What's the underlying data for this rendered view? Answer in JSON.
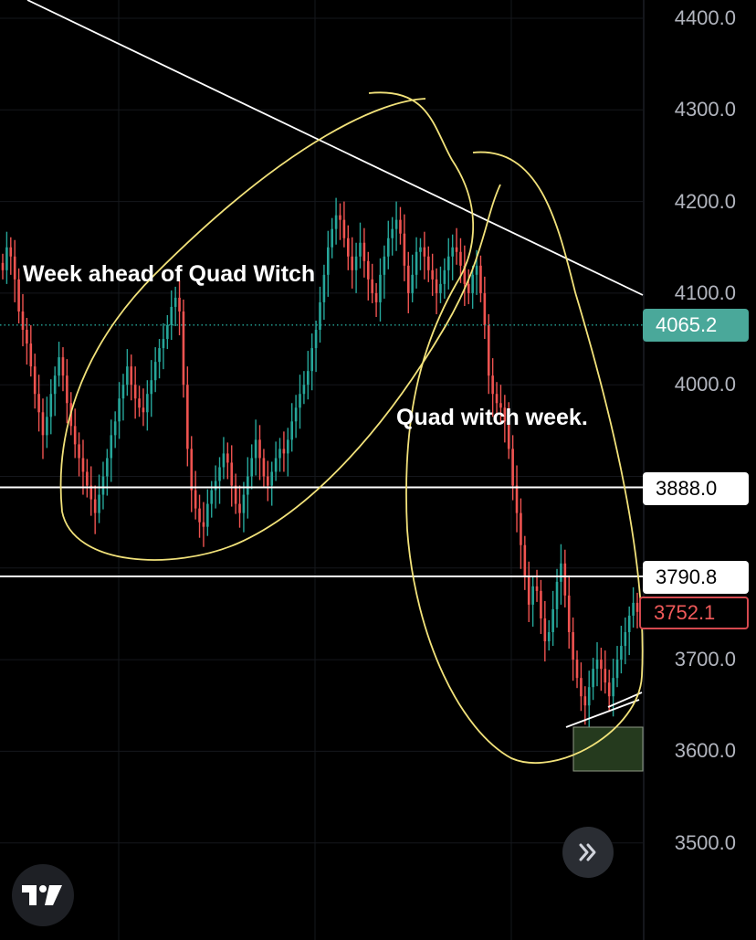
{
  "chart_data": {
    "type": "candlestick",
    "title": "",
    "xlabel": "",
    "ylabel": "",
    "ylim": [
      3460,
      4420
    ],
    "price_axis_ticks": [
      "4400.0",
      "4300.0",
      "4200.0",
      "4100.0",
      "4000.0",
      "3700.0",
      "3600.0",
      "3500.0"
    ],
    "price_tags": {
      "last_price_dotted": "4065.2",
      "horizontal_line_1": "3888.0",
      "horizontal_line_2": "3790.8",
      "current_price": "3752.1"
    },
    "horizontal_levels": [
      3888.0,
      3790.8
    ],
    "dotted_level": 4065.2,
    "annotations": [
      "Week ahead of Quad Witch",
      "Quad witch week."
    ],
    "closes": [
      4125,
      4150,
      4140,
      4115,
      4080,
      4060,
      4045,
      4020,
      3990,
      3970,
      3945,
      3965,
      3990,
      4010,
      4030,
      4010,
      3980,
      3955,
      3935,
      3920,
      3905,
      3890,
      3875,
      3860,
      3880,
      3900,
      3920,
      3945,
      3960,
      3985,
      4000,
      4020,
      4000,
      3985,
      3975,
      3970,
      3990,
      4005,
      4025,
      4040,
      4050,
      4065,
      4085,
      4095,
      4080,
      4000,
      3930,
      3885,
      3865,
      3850,
      3845,
      3870,
      3885,
      3895,
      3910,
      3925,
      3915,
      3890,
      3870,
      3860,
      3880,
      3900,
      3920,
      3940,
      3920,
      3900,
      3890,
      3905,
      3920,
      3930,
      3925,
      3940,
      3960,
      3975,
      3990,
      4000,
      4015,
      4040,
      4060,
      4090,
      4120,
      4150,
      4170,
      4185,
      4180,
      4160,
      4140,
      4125,
      4140,
      4155,
      4135,
      4115,
      4100,
      4090,
      4120,
      4140,
      4160,
      4170,
      4180,
      4165,
      4130,
      4100,
      4120,
      4145,
      4150,
      4140,
      4125,
      4115,
      4100,
      4110,
      4125,
      4140,
      4150,
      4145,
      4130,
      4110,
      4100,
      4120,
      4130,
      4100,
      4065,
      4010,
      3990,
      3980,
      3975,
      3960,
      3930,
      3890,
      3860,
      3825,
      3790,
      3760,
      3780,
      3775,
      3745,
      3720,
      3730,
      3755,
      3785,
      3805,
      3770,
      3730,
      3700,
      3680,
      3660,
      3650,
      3670,
      3690,
      3700,
      3690,
      3675,
      3660,
      3680,
      3700,
      3715,
      3730,
      3748,
      3762,
      3752.1
    ]
  },
  "axis_ticks_render": [
    {
      "label": "4400.0",
      "value": 4400
    },
    {
      "label": "4300.0",
      "value": 4300
    },
    {
      "label": "4200.0",
      "value": 4200
    },
    {
      "label": "4100.0",
      "value": 4100
    },
    {
      "label": "4000.0",
      "value": 4000
    },
    {
      "label": "3700.0",
      "value": 3700
    },
    {
      "label": "3600.0",
      "value": 3600
    },
    {
      "label": "3500.0",
      "value": 3500
    }
  ],
  "colors": {
    "up": "#26a69a",
    "down": "#ef5350",
    "annotation_stroke": "#f2e27a",
    "trendline": "#ffffff",
    "zone_fill": "#253a1e"
  },
  "icons": {
    "logo": "tradingview-logo-icon",
    "scroll": "chevron-double-right-icon"
  }
}
